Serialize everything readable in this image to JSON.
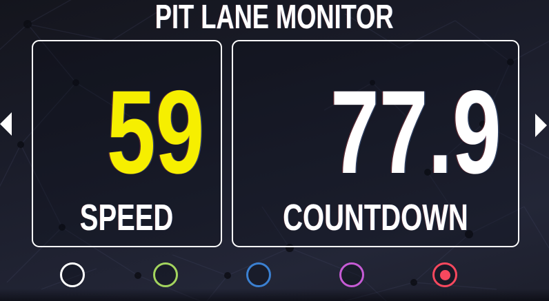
{
  "title": "PIT LANE MONITOR",
  "nav": {
    "prev_icon": "left-triangle",
    "next_icon": "right-triangle"
  },
  "panels": [
    {
      "value": "59",
      "label": "SPEED",
      "value_color": "#f6ef00"
    },
    {
      "value": "77.9",
      "label": "COUNTDOWN",
      "value_color": "#ffffff"
    }
  ],
  "indicators": [
    {
      "name": "white",
      "color": "#ffffff",
      "selected": false
    },
    {
      "name": "green",
      "color": "#a3d45e",
      "selected": false
    },
    {
      "name": "blue",
      "color": "#3b80d1",
      "selected": false
    },
    {
      "name": "purple",
      "color": "#c65bd5",
      "selected": false
    },
    {
      "name": "red",
      "color": "#f8485e",
      "selected": true
    }
  ]
}
